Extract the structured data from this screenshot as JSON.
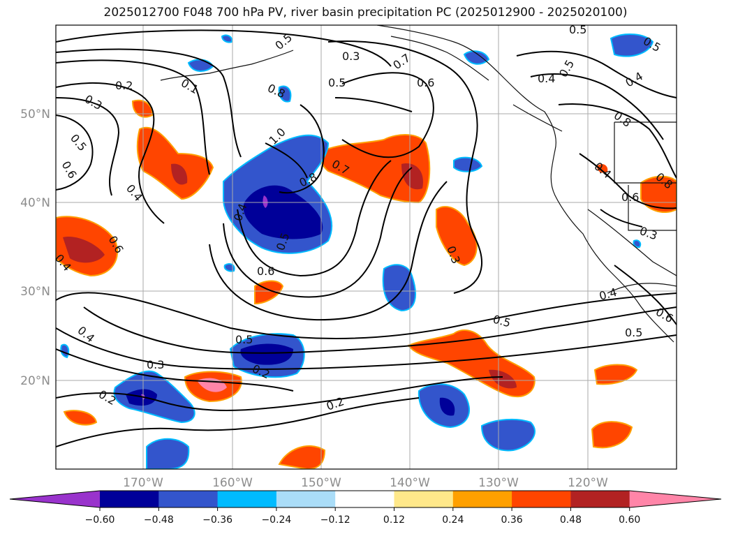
{
  "title": "2025012700 F048 700 hPa PV, river basin precipitation PC (2025012900 - 2025020100)",
  "latitude_labels": [
    "50°N",
    "40°N",
    "30°N",
    "20°N"
  ],
  "longitude_labels": [
    "170°W",
    "160°W",
    "150°W",
    "140°W",
    "130°W",
    "120°W"
  ],
  "colorbar": {
    "ticks": [
      "−0.60",
      "−0.48",
      "−0.36",
      "−0.24",
      "−0.12",
      "0.12",
      "0.24",
      "0.36",
      "0.48",
      "0.60"
    ],
    "colors": [
      "#9933cc",
      "#000099",
      "#3355cc",
      "#00bbff",
      "#aaddf8",
      "#ffffff",
      "#ffe88a",
      "#ffa000",
      "#ff4500",
      "#b22222",
      "#ff85a8"
    ]
  },
  "contour_labels": [
    "0.5",
    "0.3",
    "0.7",
    "0.5",
    "0.6",
    "0.2",
    "0.1",
    "0.3",
    "0.8",
    "1.0",
    "0.5",
    "0.6",
    "0.4",
    "0.7",
    "0.8",
    "0.6",
    "0.4",
    "0.5",
    "0.6",
    "0.3",
    "0.4",
    "0.4",
    "0.6",
    "0.4",
    "0.5",
    "0.5",
    "0.2",
    "0.3",
    "0.2",
    "0.2",
    "0.5",
    "0.4",
    "0.5",
    "0.6",
    "0.8",
    "0.4",
    "0.3",
    "0.5",
    "0.4",
    "0.5",
    "0.8"
  ]
}
